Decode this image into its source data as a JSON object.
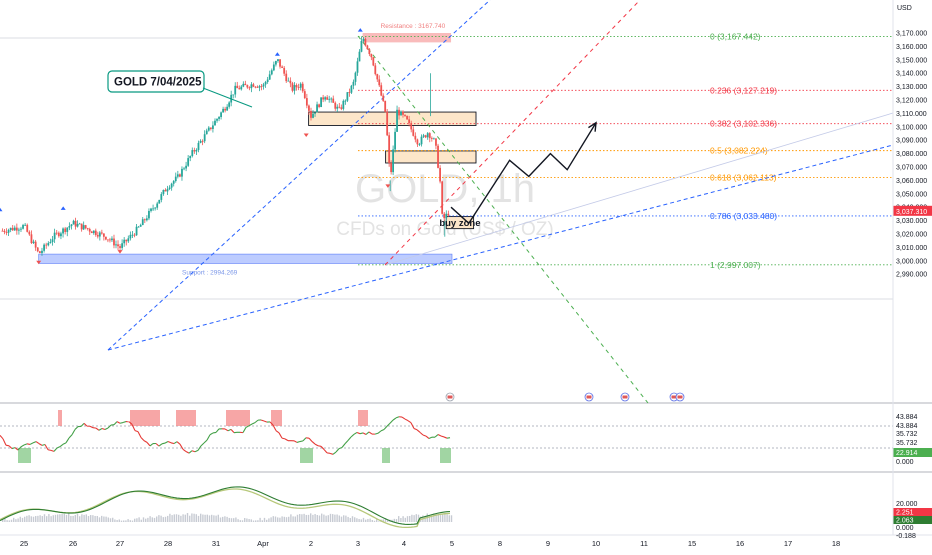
{
  "chart_data": {
    "type": "candlestick",
    "symbol": "GOLD, 1h",
    "description": "CFDs on Gold (US$ / OZ)",
    "annotation_label": "GOLD 7/04/2025",
    "currency_label": "USD",
    "last_price": "3,037.310",
    "price_axis": {
      "ylim": [
        2982,
        3189
      ],
      "ticks": [
        "3,170.000",
        "3,160.000",
        "3,150.000",
        "3,140.000",
        "3,130.000",
        "3,120.000",
        "3,110.000",
        "3,100.000",
        "3,090.000",
        "3,080.000",
        "3,070.000",
        "3,060.000",
        "3,050.000",
        "3,040.000",
        "3,030.000",
        "3,020.000",
        "3,010.000",
        "3,000.000",
        "2,990.000"
      ]
    },
    "x_axis": {
      "ticks": [
        "25",
        "26",
        "27",
        "28",
        "31",
        "Apr",
        "2",
        "3",
        "4",
        "5",
        "8",
        "9",
        "10",
        "11",
        "15",
        "16",
        "17",
        "18"
      ],
      "tick_days": [
        0,
        1,
        2,
        3,
        4,
        5,
        6,
        7,
        8,
        9,
        10,
        11,
        12,
        13,
        14,
        15,
        16,
        17
      ]
    },
    "fibonacci": [
      {
        "label": "0 (3,167.442)",
        "price": 3167.442,
        "color": "#4caf50"
      },
      {
        "label": "0.236 (3,127.219)",
        "price": 3127.219,
        "color": "#f23645"
      },
      {
        "label": "0.382 (3,102.336)",
        "price": 3102.336,
        "color": "#f23645"
      },
      {
        "label": "0.5 (3,082.224)",
        "price": 3082.224,
        "color": "#ff9800"
      },
      {
        "label": "0.618 (3,062.113)",
        "price": 3062.113,
        "color": "#ff9800"
      },
      {
        "label": "0.786 (3,033.480)",
        "price": 3033.48,
        "color": "#2962ff"
      },
      {
        "label": "1 (2,997.007)",
        "price": 2997.007,
        "color": "#4caf50"
      }
    ],
    "zones": [
      {
        "label": "Resistance : 3167.740",
        "top": 3170,
        "bottom": 3163,
        "start_day": 7.1,
        "end_day": 8.98,
        "kind": "resistance"
      },
      {
        "label": "",
        "top": 3111,
        "bottom": 3101,
        "start_day": 5.95,
        "end_day": 9.5,
        "kind": "supply"
      },
      {
        "label": "",
        "top": 3082,
        "bottom": 3073,
        "start_day": 7.6,
        "end_day": 9.5,
        "kind": "supply"
      },
      {
        "label": "buy zone",
        "top": 3033,
        "bottom": 3024,
        "start_day": 8.88,
        "end_day": 9.45,
        "kind": "buy"
      },
      {
        "label": "Support : 2994.269",
        "top": 3005,
        "bottom": 2998,
        "start_day": 0.3,
        "end_day": 9.0,
        "kind": "support"
      }
    ],
    "projection_path": [
      {
        "day": 8.98,
        "price": 3040
      },
      {
        "day": 9.35,
        "price": 3028
      },
      {
        "day": 10.2,
        "price": 3075
      },
      {
        "day": 10.6,
        "price": 3063
      },
      {
        "day": 11.05,
        "price": 3080
      },
      {
        "day": 11.4,
        "price": 3068
      },
      {
        "day": 12.0,
        "price": 3103
      }
    ],
    "oscillator_1": {
      "ticks": [
        "43.884",
        "43.884",
        "35.732",
        "35.732",
        "22.914",
        "0.000"
      ],
      "current": "22.914"
    },
    "oscillator_2": {
      "ticks": [
        "20.000",
        "2.251",
        "2.063",
        "0.000",
        "-0.188"
      ],
      "current_1": "2.251",
      "current_2": "2.063"
    },
    "colors": {
      "up": "#26a69a",
      "down": "#ef5350",
      "trendline": "#2962ff",
      "fib_guide": "#f23645",
      "fib_green": "#4caf50",
      "supply_zone": "#fde3c3",
      "resistance_zone": "#f8b4b4",
      "support_zone": "#b6c6ff",
      "osc_line_red": "#e53935",
      "osc_line_green": "#43a047",
      "osc_highlight": "#f48080",
      "osc_green_box": "#81c784"
    }
  }
}
